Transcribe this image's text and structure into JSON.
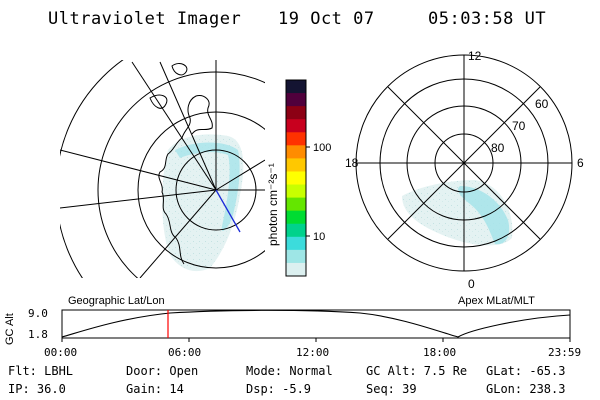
{
  "header": {
    "instrument": "Ultraviolet Imager",
    "date": "19 Oct 07",
    "time": "05:03:58 UT"
  },
  "colorbar": {
    "label": "photon cm⁻²s⁻¹",
    "ticks": [
      "100",
      "10"
    ],
    "colors": [
      "#141432",
      "#50003c",
      "#8c0014",
      "#c8001e",
      "#ff3200",
      "#ff8c00",
      "#ffc800",
      "#ffff00",
      "#c8ff00",
      "#64e600",
      "#00dc32",
      "#00d28c",
      "#3cdcdc",
      "#9ee6e6",
      "#dcf0f0"
    ]
  },
  "polar": {
    "hour_labels": [
      "12",
      "18",
      "6",
      "0"
    ],
    "lat_labels": [
      "60",
      "70",
      "80"
    ]
  },
  "timeline": {
    "left_label": "Geographic Lat/Lon",
    "right_label": "Apex MLat/MLT",
    "axis_label": "GC Alt",
    "y_ticks": [
      "9.0",
      "1.8"
    ],
    "x_ticks": [
      "00:00",
      "06:00",
      "12:00",
      "18:00",
      "23:59"
    ],
    "marker_time": "05:04",
    "marker_color": "#ff0000"
  },
  "info": {
    "filter": "Flt: LBHL",
    "ip": "IP: 36.0",
    "door": "Door: Open",
    "gain": "Gain: 14",
    "mode": "Mode: Normal",
    "dsp": "Dsp:   -5.9",
    "gc_alt": "GC Alt: 7.5 Re",
    "seq": "Seq: 39",
    "glat": "GLat: -65.3",
    "glon": "GLon: 238.3"
  }
}
